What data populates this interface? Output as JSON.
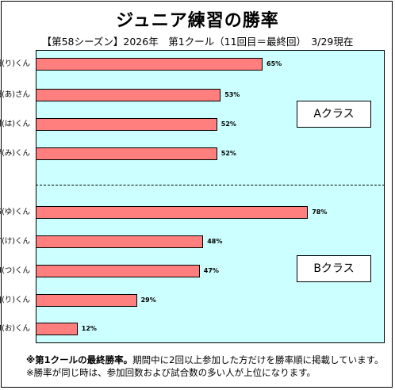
{
  "title": "ジュニア練習の勝率",
  "subtitle": "【第58シーズン】2026年　第1クール（11回目＝最終回）　3/29現在",
  "class_labels": {
    "a": "Aクラス",
    "b": "Bクラス"
  },
  "notes": {
    "line1_bold": "※第1クールの最終勝率。",
    "line1_rest": "期間中に2回以上参加した方だけを勝率順に掲載しています。",
    "line2": "※勝率が同じ時は、参加回数および試合数の多い人が上位になります。"
  },
  "colors": {
    "bar": "#ff7f7f",
    "plot_bg": "#ccffff"
  },
  "chart_data": {
    "type": "bar",
    "orientation": "horizontal",
    "xlim": [
      0,
      100
    ],
    "grid": false,
    "groups": [
      {
        "name": "Aクラス",
        "categories": [
          "K田(り)くん",
          "K田(あ)さん",
          "N村(は)くん",
          "U野(み)くん"
        ],
        "values": [
          65,
          53,
          52,
          52
        ],
        "labels": [
          "65%",
          "53%",
          "52%",
          "52%"
        ]
      },
      {
        "name": "Bクラス",
        "categories": [
          "IS(ゆ)くん",
          "YT(け)くん",
          "AI(つ)くん",
          "MJ(り)くん",
          "SM(お)くん"
        ],
        "values": [
          78,
          48,
          47,
          29,
          12
        ],
        "labels": [
          "78%",
          "48%",
          "47%",
          "29%",
          "12%"
        ]
      }
    ]
  }
}
